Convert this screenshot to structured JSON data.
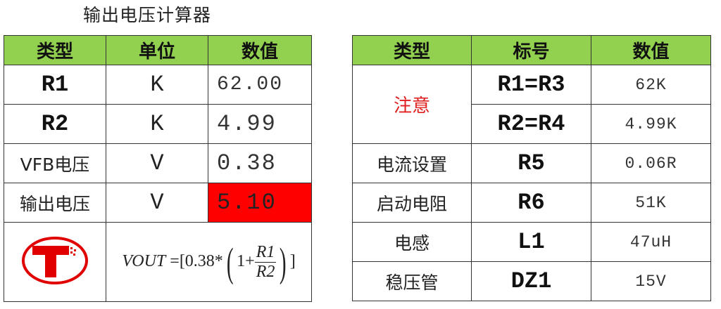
{
  "title": "输出电压计算器",
  "left_table": {
    "headers": [
      "类型",
      "单位",
      "数值"
    ],
    "rows": [
      {
        "type": "R1",
        "unit": "K",
        "value": "62.00"
      },
      {
        "type": "R2",
        "unit": "K",
        "value": "4.99"
      },
      {
        "type": "VFB电压",
        "unit": "V",
        "value": "0.38"
      },
      {
        "type": "输出电压",
        "unit": "V",
        "value": "5.10",
        "highlight": "#ff0000"
      }
    ],
    "logo": "T",
    "formula": {
      "lhs": "VOUT",
      "eq": "=[0.38*",
      "one": "1+",
      "num": "R1",
      "den": "R2",
      "close": "]"
    }
  },
  "right_table": {
    "headers": [
      "类型",
      "标号",
      "数值"
    ],
    "note": "注意",
    "rows": [
      {
        "label": "R1=R3",
        "value": "62K"
      },
      {
        "label": "R2=R4",
        "value": "4.99K"
      },
      {
        "type": "电流设置",
        "label": "R5",
        "value": "0.06R"
      },
      {
        "type": "启动电阻",
        "label": "R6",
        "value": "51K"
      },
      {
        "type": "电感",
        "label": "L1",
        "value": "47uH"
      },
      {
        "type": "稳压管",
        "label": "DZ1",
        "value": "15V"
      }
    ]
  },
  "colors": {
    "header": "#92D050",
    "highlight": "#ff0000",
    "note": "#e02020",
    "logo": "#e00000"
  }
}
